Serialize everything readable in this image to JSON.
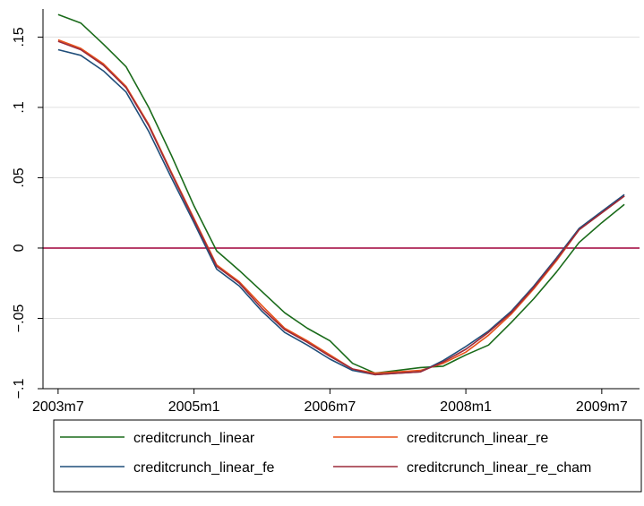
{
  "chart_data": {
    "type": "line",
    "title": "",
    "xlabel": "",
    "ylabel": "",
    "x_ticks": [
      "2003m7",
      "2005m1",
      "2006m7",
      "2008m1",
      "2009m7"
    ],
    "y_ticks": [
      "-.1",
      "-.05",
      "0",
      ".05",
      ".1",
      ".15"
    ],
    "ylim": [
      -0.1,
      0.17
    ],
    "grid": true,
    "legend_position": "bottom",
    "reference_line": {
      "y": 0,
      "color": "#a0003a"
    },
    "x": [
      "2003m7",
      "2003m10",
      "2004m1",
      "2004m4",
      "2004m7",
      "2004m10",
      "2005m1",
      "2005m4",
      "2005m7",
      "2005m10",
      "2006m1",
      "2006m4",
      "2006m7",
      "2006m10",
      "2007m1",
      "2007m4",
      "2007m7",
      "2007m10",
      "2008m1",
      "2008m4",
      "2008m7",
      "2008m10",
      "2009m1",
      "2009m4",
      "2009m7",
      "2009m10"
    ],
    "series": [
      {
        "name": "creditcrunch_linear",
        "color": "#1a6b1a",
        "values": [
          0.166,
          0.16,
          0.145,
          0.129,
          0.1,
          0.066,
          0.03,
          -0.002,
          -0.016,
          -0.031,
          -0.046,
          -0.057,
          -0.066,
          -0.082,
          -0.089,
          -0.087,
          -0.085,
          -0.084,
          -0.076,
          -0.069,
          -0.053,
          -0.036,
          -0.017,
          0.004,
          0.018,
          0.031
        ]
      },
      {
        "name": "creditcrunch_linear_re",
        "color": "#e8521a",
        "values": [
          0.148,
          0.142,
          0.131,
          0.115,
          0.088,
          0.054,
          0.021,
          -0.012,
          -0.024,
          -0.041,
          -0.057,
          -0.066,
          -0.076,
          -0.086,
          -0.089,
          -0.088,
          -0.087,
          -0.082,
          -0.074,
          -0.062,
          -0.047,
          -0.029,
          -0.009,
          0.013,
          0.025,
          0.037
        ]
      },
      {
        "name": "creditcrunch_linear_fe",
        "color": "#1f4e7a",
        "values": [
          0.141,
          0.137,
          0.126,
          0.111,
          0.083,
          0.05,
          0.018,
          -0.015,
          -0.027,
          -0.045,
          -0.06,
          -0.069,
          -0.079,
          -0.087,
          -0.09,
          -0.089,
          -0.088,
          -0.08,
          -0.07,
          -0.059,
          -0.045,
          -0.027,
          -0.007,
          0.014,
          0.026,
          0.038
        ]
      },
      {
        "name": "creditcrunch_linear_re_cham",
        "color": "#9b2a3a",
        "values": [
          0.147,
          0.141,
          0.13,
          0.114,
          0.087,
          0.053,
          0.02,
          -0.013,
          -0.025,
          -0.043,
          -0.058,
          -0.067,
          -0.077,
          -0.086,
          -0.09,
          -0.089,
          -0.088,
          -0.081,
          -0.072,
          -0.06,
          -0.046,
          -0.028,
          -0.008,
          0.013,
          0.025,
          0.037
        ]
      }
    ]
  }
}
